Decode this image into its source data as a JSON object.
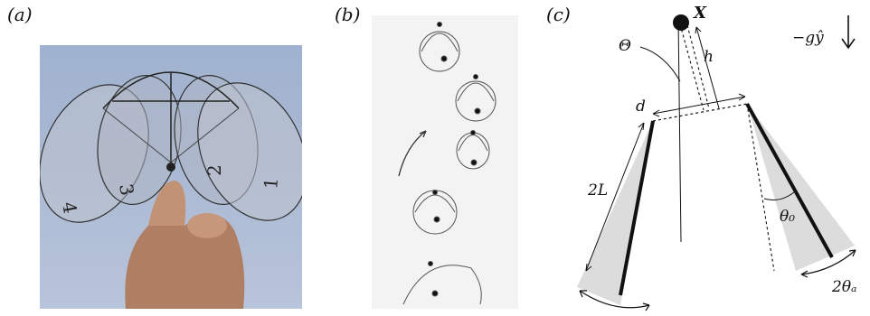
{
  "panels": {
    "a": {
      "label": "(a)"
    },
    "b": {
      "label": "(b)"
    },
    "c": {
      "label": "(c)"
    }
  },
  "diagram": {
    "x_label": "X",
    "theta_label": "Θ",
    "h_label": "h",
    "gravity_label": "−gŷ",
    "d_label": "d",
    "length_label": "2L",
    "theta0_label": "θ₀",
    "theta_a_label": "2θₐ"
  },
  "photo_a": {
    "wing_numbers": [
      "4",
      "3",
      "2",
      "1"
    ]
  },
  "colors": {
    "wedge": "#dcdcdc",
    "ink": "#111111"
  }
}
